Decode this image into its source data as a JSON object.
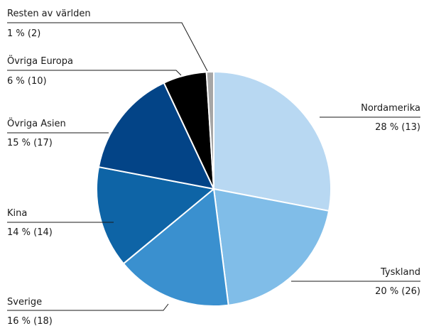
{
  "chart_data": {
    "type": "pie",
    "title": "",
    "start": "top, clockwise",
    "slices": [
      {
        "label": "Nordamerika",
        "percent": 28,
        "count": 13,
        "value_text": "28 % (13)",
        "color": "#b8d8f2"
      },
      {
        "label": "Tyskland",
        "percent": 20,
        "count": 26,
        "value_text": "20 % (26)",
        "color": "#80bde8"
      },
      {
        "label": "Sverige",
        "percent": 16,
        "count": 18,
        "value_text": "16 % (18)",
        "color": "#3a90cf"
      },
      {
        "label": "Kina",
        "percent": 14,
        "count": 14,
        "value_text": "14 % (14)",
        "color": "#0e64a6"
      },
      {
        "label": "Övriga Asien",
        "percent": 15,
        "count": 17,
        "value_text": "15 % (17)",
        "color": "#034487"
      },
      {
        "label": "Övriga Europa",
        "percent": 6,
        "count": 10,
        "value_text": "6 % (10)",
        "color": "#000000"
      },
      {
        "label": "Resten av världen",
        "percent": 1,
        "count": 2,
        "value_text": "1 % (2)",
        "color": "#a6a6a6"
      }
    ]
  }
}
